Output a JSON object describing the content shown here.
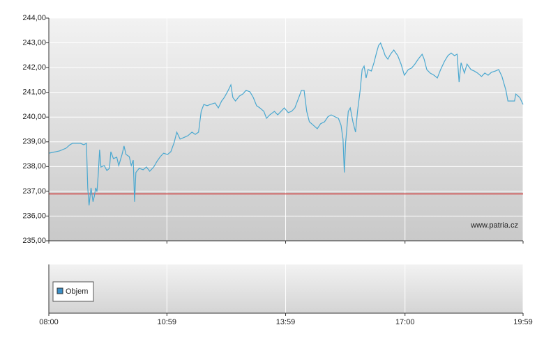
{
  "chart_data": {
    "type": "line",
    "color": "#4aa8d0",
    "x": [
      480,
      496,
      506,
      512,
      516,
      528,
      533,
      537,
      539,
      541,
      544,
      547,
      549,
      551,
      553,
      555,
      557,
      559,
      564,
      568,
      572,
      574,
      578,
      583,
      586,
      591,
      594,
      597,
      602,
      605,
      608,
      610,
      612,
      617,
      623,
      628,
      633,
      639,
      644,
      649,
      654,
      660,
      665,
      670,
      674,
      679,
      686,
      691,
      697,
      702,
      707,
      711,
      715,
      720,
      725,
      732,
      737,
      742,
      746,
      752,
      756,
      759,
      763,
      769,
      774,
      779,
      785,
      790,
      795,
      800,
      806,
      810,
      815,
      822,
      827,
      832,
      837,
      843,
      848,
      853,
      859,
      863,
      867,
      871,
      875,
      881,
      887,
      892,
      898,
      903,
      908,
      914,
      919,
      923,
      926,
      928,
      930,
      934,
      937,
      941,
      945,
      948,
      952,
      955,
      958,
      961,
      964,
      969,
      973,
      977,
      980,
      983,
      987,
      990,
      994,
      998,
      1003,
      1009,
      1014,
      1019,
      1025,
      1030,
      1035,
      1040,
      1046,
      1049,
      1053,
      1058,
      1064,
      1069,
      1074,
      1080,
      1085,
      1090,
      1095,
      1099,
      1102,
      1105,
      1110,
      1114,
      1120,
      1125,
      1130,
      1136,
      1141,
      1146,
      1151,
      1157,
      1162,
      1167,
      1173,
      1176,
      1181,
      1186,
      1188,
      1194,
      1199
    ],
    "values": [
      238.54,
      238.63,
      238.74,
      238.88,
      238.94,
      238.94,
      238.88,
      238.94,
      237.14,
      236.43,
      237.14,
      236.58,
      236.8,
      237.14,
      236.99,
      237.7,
      238.68,
      237.98,
      238.04,
      237.84,
      237.93,
      238.6,
      238.32,
      238.38,
      238.04,
      238.49,
      238.83,
      238.49,
      238.4,
      238.04,
      238.26,
      236.58,
      237.76,
      237.93,
      237.87,
      237.98,
      237.81,
      237.98,
      238.21,
      238.4,
      238.54,
      238.49,
      238.6,
      238.97,
      239.39,
      239.11,
      239.19,
      239.25,
      239.39,
      239.3,
      239.39,
      240.23,
      240.51,
      240.46,
      240.51,
      240.57,
      240.37,
      240.65,
      240.79,
      241.08,
      241.3,
      240.79,
      240.65,
      240.85,
      240.93,
      241.08,
      241.02,
      240.79,
      240.46,
      240.37,
      240.23,
      239.95,
      240.09,
      240.23,
      240.09,
      240.23,
      240.37,
      240.18,
      240.23,
      240.37,
      240.79,
      241.08,
      241.08,
      240.23,
      239.81,
      239.67,
      239.53,
      239.73,
      239.81,
      240.01,
      240.09,
      240.01,
      239.95,
      239.67,
      239.11,
      237.76,
      238.97,
      240.23,
      240.37,
      239.81,
      239.39,
      240.23,
      241.08,
      241.92,
      242.06,
      241.58,
      241.92,
      241.86,
      242.2,
      242.62,
      242.9,
      242.99,
      242.71,
      242.48,
      242.34,
      242.54,
      242.71,
      242.48,
      242.14,
      241.69,
      241.92,
      241.98,
      242.14,
      242.34,
      242.54,
      242.34,
      241.92,
      241.78,
      241.69,
      241.58,
      241.92,
      242.26,
      242.48,
      242.59,
      242.48,
      242.54,
      241.41,
      242.2,
      241.78,
      242.14,
      241.92,
      241.86,
      241.78,
      241.64,
      241.78,
      241.69,
      241.81,
      241.86,
      241.92,
      241.64,
      241.08,
      240.65,
      240.65,
      240.65,
      240.93,
      240.79,
      240.51
    ],
    "xlim": [
      480,
      1199
    ],
    "xticks": [
      {
        "value": 480,
        "label": "08:00"
      },
      {
        "value": 659,
        "label": "10:59"
      },
      {
        "value": 839,
        "label": "13:59"
      },
      {
        "value": 1020,
        "label": "17:00"
      },
      {
        "value": 1199,
        "label": "19:59"
      }
    ],
    "ylim": [
      235,
      244
    ],
    "yticks": [
      {
        "value": 235,
        "label": "235,00"
      },
      {
        "value": 236,
        "label": "236,00"
      },
      {
        "value": 237,
        "label": "237,00"
      },
      {
        "value": 238,
        "label": "238,00"
      },
      {
        "value": 239,
        "label": "239,00"
      },
      {
        "value": 240,
        "label": "240,00"
      },
      {
        "value": 241,
        "label": "241,00"
      },
      {
        "value": 242,
        "label": "242,00"
      },
      {
        "value": 243,
        "label": "243,00"
      },
      {
        "value": 244,
        "label": "244,00"
      }
    ],
    "grid": true,
    "reference_line": {
      "value": 236.9,
      "color": "#d05050"
    },
    "annotation": "www.patria.cz",
    "volume_panel": {
      "legend": "Objem",
      "color": "#3a8fc8"
    }
  }
}
